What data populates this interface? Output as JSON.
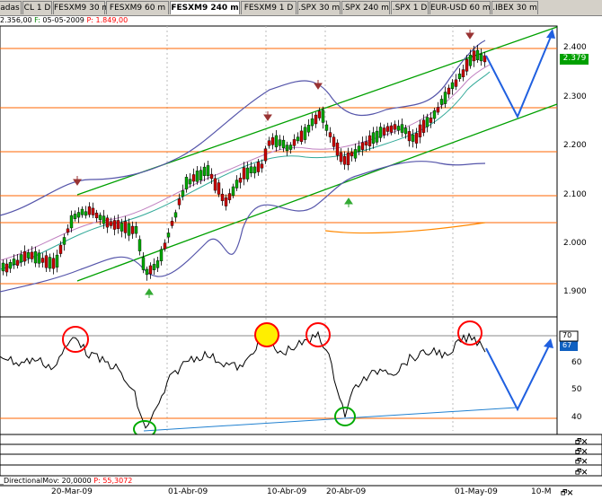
{
  "tabs": [
    {
      "label": "adas"
    },
    {
      "label": "CL 1 D"
    },
    {
      "label": "FESXM9 30 m"
    },
    {
      "label": "FESXM9 60 m"
    },
    {
      "label": "FESXM9 240 m",
      "active": true
    },
    {
      "label": "FESXM9 1 D"
    },
    {
      "label": ".SPX 30 m"
    },
    {
      "label": ".SPX 240 m"
    },
    {
      "label": ".SPX 1 D"
    },
    {
      "label": "EUR-USD 60 m"
    },
    {
      "label": ".IBEX 30 m"
    }
  ],
  "info": {
    "prefix": "2.356,00",
    "f_label": "F:",
    "date": "05-05-2009",
    "p_label": "P:",
    "p_value": "1.849,00"
  },
  "price_axis": {
    "ticks": [
      "2.400",
      "2.300",
      "2.200",
      "2.100",
      "2.000",
      "1.900"
    ],
    "current": "2.379"
  },
  "osc_axis": {
    "ticks": [
      "60",
      "50",
      "40"
    ],
    "current_a": "70",
    "current_b": "67"
  },
  "dm_panel": {
    "label": "_DirectionalMov: 20,0000",
    "p_label": "P:",
    "p_value": "55,3072"
  },
  "time_axis": {
    "labels": [
      "20-Mar-09",
      "01-Abr-09",
      "10-Abr-09",
      "20-Abr-09",
      "01-May-09",
      "10-M"
    ]
  },
  "panel_buttons": "🗗🗙",
  "colors": {
    "up": "#00aa00",
    "down": "#cc0000",
    "channel": "#00a000",
    "hline": "#ff6600",
    "band": "#5555aa",
    "arrow": "#2060e0",
    "circle_red": "#ff0000",
    "circle_green": "#00aa00",
    "circle_yellow_fill": "#ffee00",
    "marker_down": "#993333",
    "marker_up": "#33aa33"
  }
}
